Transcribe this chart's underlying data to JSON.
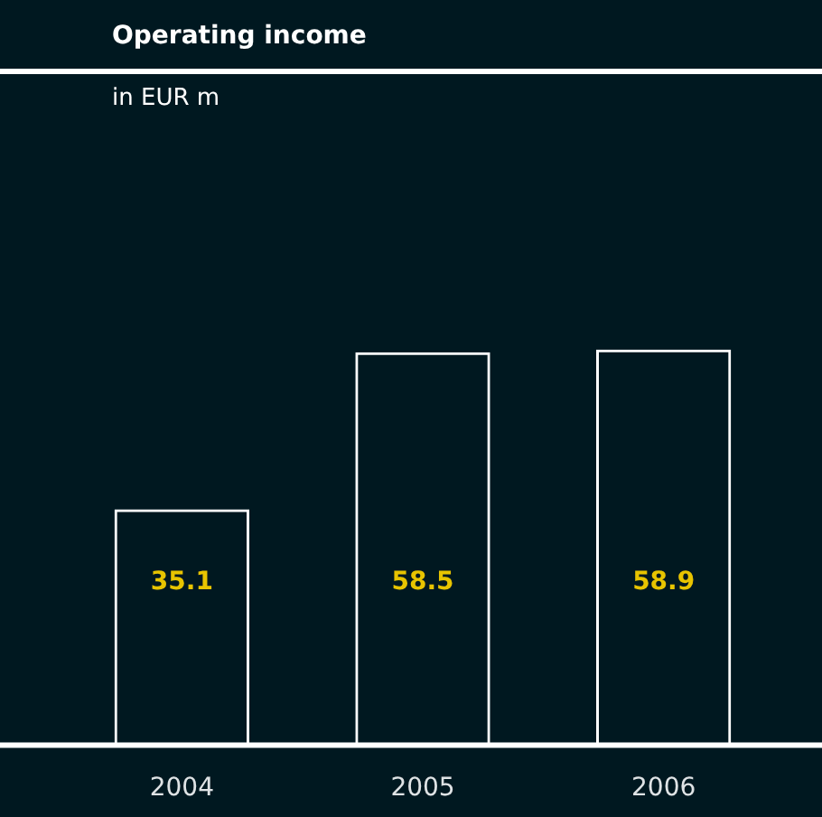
{
  "chart_data": {
    "type": "bar",
    "title": "Operating income",
    "subtitle": "in EUR m",
    "categories": [
      "2004",
      "2005",
      "2006"
    ],
    "values": [
      35.1,
      58.5,
      58.9
    ],
    "color": "#ffffff",
    "data_labels": true
  }
}
